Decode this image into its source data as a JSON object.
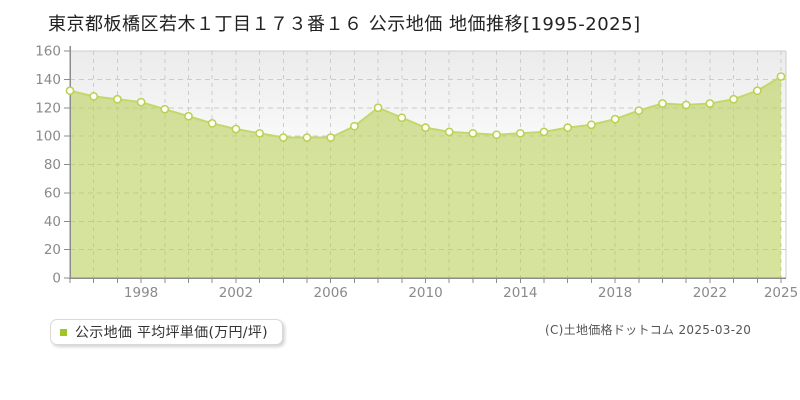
{
  "title": "東京都板橋区若木１丁目１７３番１６ 公示地価 地価推移[1995-2025]",
  "legend": {
    "marker_color": "#a3c32a",
    "label": "公示地価 平均坪単価(万円/坪)"
  },
  "copyright": "(C)土地価格ドットコム 2025-03-20",
  "chart_data": {
    "type": "area",
    "title": "東京都板橋区若木１丁目１７３番１６ 公示地価 地価推移[1995-2025]",
    "xlabel": "",
    "ylabel": "公示地価 平均坪単価(万円/坪)",
    "x": [
      1995,
      1996,
      1997,
      1998,
      1999,
      2000,
      2001,
      2002,
      2003,
      2004,
      2005,
      2006,
      2007,
      2008,
      2009,
      2010,
      2011,
      2012,
      2013,
      2014,
      2015,
      2016,
      2017,
      2018,
      2019,
      2020,
      2021,
      2022,
      2023,
      2024,
      2025
    ],
    "series": [
      {
        "name": "公示地価 平均坪単価(万円/坪)",
        "values": [
          132,
          128,
          126,
          124,
          119,
          114,
          109,
          105,
          102,
          99,
          99,
          99,
          107,
          120,
          113,
          106,
          103,
          102,
          101,
          102,
          103,
          106,
          108,
          112,
          118,
          123,
          122,
          123,
          126,
          132,
          142
        ]
      }
    ],
    "ylim": [
      0,
      160
    ],
    "ytick_step": 20,
    "xtick_labels": [
      "1998",
      "2002",
      "2006",
      "2010",
      "2014",
      "2018",
      "2022",
      "2025"
    ],
    "grid": true,
    "legend_position": "bottom-left",
    "colors": {
      "area_fill": "#b9cf55",
      "area_opacity": 0.58,
      "line": "#c3d86b",
      "marker_fill": "#fffef6",
      "marker_stroke": "#b9d051",
      "grid": "#cccccc",
      "axis": "#8c8c8c",
      "tick_label": "#8a8a8a",
      "plot_bg_top": "#ebebeb",
      "plot_bg_bottom": "#ffffff"
    }
  }
}
